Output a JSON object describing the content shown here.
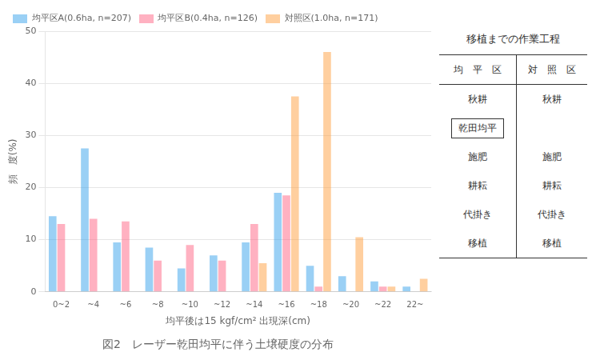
{
  "chart_data": {
    "type": "bar",
    "title": "図2　レーザー乾田均平に伴う土壌硬度の分布",
    "xlabel": "均平後は15 kgf/cm² 出現深(cm)",
    "ylabel": "頻　度(%)",
    "categories": [
      "0~2",
      "~4",
      "~6",
      "~8",
      "~10",
      "~12",
      "~14",
      "~16",
      "~18",
      "~20",
      "~22",
      "22~"
    ],
    "series": [
      {
        "name": "均平区A(0.6ha, n=207)",
        "values": [
          14.5,
          27.5,
          9.5,
          8.5,
          4.5,
          7,
          9.5,
          19,
          5,
          3,
          2,
          1
        ]
      },
      {
        "name": "均平区B(0.4ha, n=126)",
        "values": [
          13,
          14,
          13.5,
          6,
          9,
          6,
          13,
          18.5,
          1,
          0,
          1,
          0
        ]
      },
      {
        "name": "対照区(1.0ha, n=171)",
        "values": [
          0,
          0,
          0,
          0,
          0,
          0,
          5.5,
          37.5,
          46,
          10.5,
          1,
          2.5
        ]
      }
    ],
    "ylim": [
      0,
      50
    ],
    "yticks": [
      0,
      10,
      20,
      30,
      40,
      50
    ],
    "grid": true,
    "legend": "upper left",
    "table": {
      "title": "移植までの作業工程",
      "columns": [
        "均　平　区",
        "対　照　区"
      ],
      "rows": [
        [
          "秋耕",
          "秋耕"
        ],
        [
          "乾田均平",
          null
        ],
        [
          "施肥",
          "施肥"
        ],
        [
          "耕耘",
          "耕耘"
        ],
        [
          "代掛き",
          "代掛き"
        ],
        [
          "移植",
          "移植"
        ]
      ]
    }
  }
}
